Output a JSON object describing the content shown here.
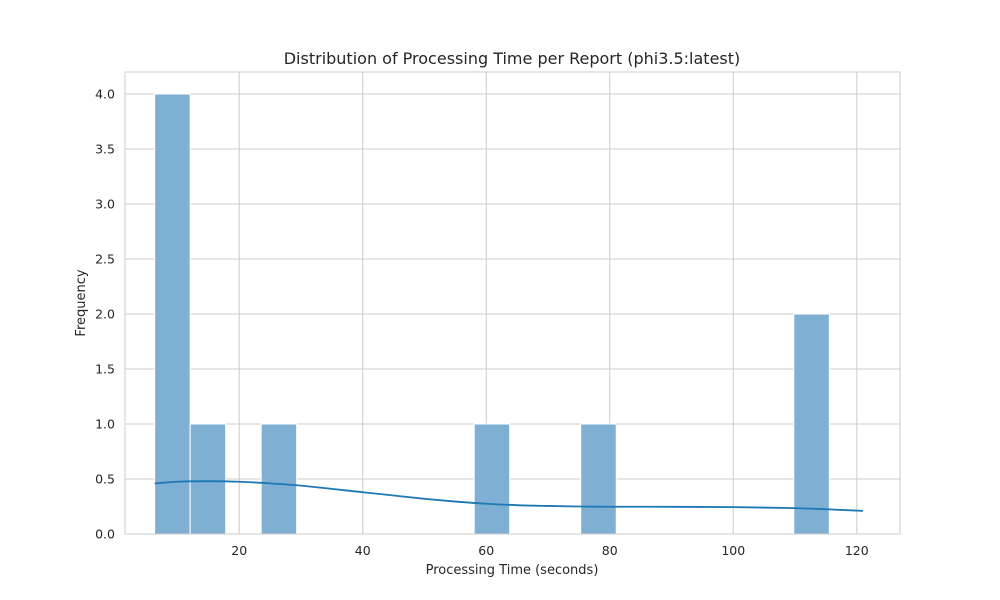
{
  "chart_data": {
    "type": "bar",
    "subtype": "histogram-with-kde",
    "title": "Distribution of Processing Time per Report (phi3.5:latest)",
    "xlabel": "Processing Time (seconds)",
    "ylabel": "Frequency",
    "xlim": [
      1.5,
      127
    ],
    "ylim": [
      0,
      4.2
    ],
    "xticks": [
      20,
      40,
      60,
      80,
      100,
      120
    ],
    "yticks": [
      0.0,
      0.5,
      1.0,
      1.5,
      2.0,
      2.5,
      3.0,
      3.5,
      4.0
    ],
    "ytick_labels": [
      "0.0",
      "0.5",
      "1.0",
      "1.5",
      "2.0",
      "2.5",
      "3.0",
      "3.5",
      "4.0"
    ],
    "bin_start": 6.3,
    "bin_width": 5.75,
    "counts": [
      4,
      1,
      0,
      1,
      0,
      0,
      0,
      0,
      0,
      1,
      0,
      0,
      1,
      0,
      0,
      0,
      0,
      0,
      2
    ],
    "kde": {
      "x": [
        6.3,
        10,
        15,
        20,
        25,
        30,
        35,
        40,
        45,
        50,
        55,
        60,
        65,
        70,
        75,
        80,
        90,
        100,
        110,
        115,
        121
      ],
      "y": [
        0.46,
        0.475,
        0.48,
        0.475,
        0.46,
        0.44,
        0.41,
        0.38,
        0.35,
        0.32,
        0.295,
        0.275,
        0.262,
        0.255,
        0.25,
        0.248,
        0.247,
        0.244,
        0.235,
        0.225,
        0.21
      ]
    },
    "bar_color": "#7fb0d4",
    "kde_color": "#1f77b4",
    "grid": true
  }
}
